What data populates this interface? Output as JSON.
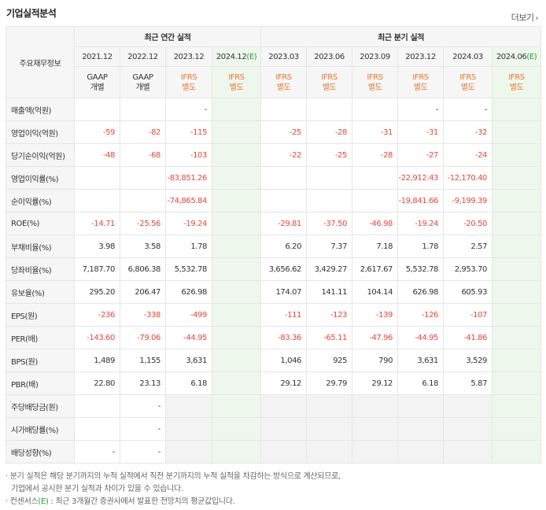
{
  "header": {
    "title": "기업실적분석",
    "more_label": "더보기",
    "more_arrow": "›"
  },
  "table": {
    "row_header": "주요재무정보",
    "groups": [
      "최근 연간 실적",
      "최근 분기 실적"
    ],
    "periods": [
      "2021.12",
      "2022.12",
      "2023.12",
      "2024.12",
      "2023.03",
      "2023.06",
      "2023.09",
      "2023.12",
      "2024.03",
      "2024.06"
    ],
    "estimate_mark": "(E)",
    "accounts": [
      {
        "std": "GAAP",
        "type": "개별"
      },
      {
        "std": "GAAP",
        "type": "개별"
      },
      {
        "std": "IFRS",
        "type": "별도"
      },
      {
        "std": "IFRS",
        "type": "별도"
      },
      {
        "std": "IFRS",
        "type": "별도"
      },
      {
        "std": "IFRS",
        "type": "별도"
      },
      {
        "std": "IFRS",
        "type": "별도"
      },
      {
        "std": "IFRS",
        "type": "별도"
      },
      {
        "std": "IFRS",
        "type": "별도"
      },
      {
        "std": "IFRS",
        "type": "별도"
      }
    ],
    "rows": [
      {
        "label": "매출액(억원)",
        "values": [
          "",
          "",
          "-",
          "",
          "",
          "",
          "",
          "-",
          "-",
          ""
        ]
      },
      {
        "label": "영업이익(억원)",
        "values": [
          "-59",
          "-82",
          "-115",
          "",
          "-25",
          "-28",
          "-31",
          "-31",
          "-32",
          ""
        ]
      },
      {
        "label": "당기순이익(억원)",
        "values": [
          "-48",
          "-68",
          "-103",
          "",
          "-22",
          "-25",
          "-28",
          "-27",
          "-24",
          ""
        ]
      },
      {
        "label": "영업이익률(%)",
        "values": [
          "",
          "",
          "-83,851.26",
          "",
          "",
          "",
          "",
          "-22,912.43",
          "-12,170.40",
          ""
        ]
      },
      {
        "label": "순이익률(%)",
        "values": [
          "",
          "",
          "-74,865.84",
          "",
          "",
          "",
          "",
          "-19,841.66",
          "-9,199.39",
          ""
        ]
      },
      {
        "label": "ROE(%)",
        "values": [
          "-14.71",
          "-25.56",
          "-19.24",
          "",
          "-29.81",
          "-37.50",
          "-46.98",
          "-19.24",
          "-20.50",
          ""
        ]
      },
      {
        "label": "부채비율(%)",
        "values": [
          "3.98",
          "3.58",
          "1.78",
          "",
          "6.20",
          "7.37",
          "7.18",
          "1.78",
          "2.57",
          ""
        ]
      },
      {
        "label": "당좌비율(%)",
        "values": [
          "7,187.70",
          "6,806.38",
          "5,532.78",
          "",
          "3,656.62",
          "3,429.27",
          "2,617.67",
          "5,532.78",
          "2,953.70",
          ""
        ]
      },
      {
        "label": "유보율(%)",
        "values": [
          "295.20",
          "206.47",
          "626.98",
          "",
          "174.07",
          "141.11",
          "104.14",
          "626.98",
          "605.93",
          ""
        ]
      },
      {
        "label": "EPS(원)",
        "values": [
          "-236",
          "-338",
          "-499",
          "",
          "-111",
          "-123",
          "-139",
          "-126",
          "-107",
          ""
        ]
      },
      {
        "label": "PER(배)",
        "values": [
          "-143.60",
          "-79.06",
          "-44.95",
          "",
          "-83.36",
          "-65.11",
          "-47.96",
          "-44.95",
          "-41.86",
          ""
        ]
      },
      {
        "label": "BPS(원)",
        "values": [
          "1,489",
          "1,155",
          "3,631",
          "",
          "1,046",
          "925",
          "790",
          "3,631",
          "3,529",
          ""
        ]
      },
      {
        "label": "PBR(배)",
        "values": [
          "22.80",
          "23.13",
          "6.18",
          "",
          "29.12",
          "29.79",
          "29.12",
          "6.18",
          "5.87",
          ""
        ]
      },
      {
        "label": "주당배당금(원)",
        "values": [
          "",
          "-",
          "",
          "",
          "",
          "",
          "",
          "",
          "",
          ""
        ]
      },
      {
        "label": "시가배당률(%)",
        "values": [
          "",
          "-",
          "",
          "",
          "",
          "",
          "",
          "",
          "",
          ""
        ]
      },
      {
        "label": "배당성향(%)",
        "values": [
          "-",
          "-",
          "",
          "",
          "",
          "",
          "",
          "",
          "",
          ""
        ]
      }
    ]
  },
  "notes": {
    "line1": "분기 실적은 해당 분기까지의 누적 실적에서 직전 분기까지의 누적 실적을 차감하는 방식으로 계산되므로,",
    "line2": "기업에서 공시한 분기 실적과 차이가 있을 수 있습니다.",
    "line3_prefix": "컨센서스",
    "line3_mark": "(E)",
    "line3_rest": ": 최근 3개월간 증권사에서 발표한 전망치의 평균값입니다."
  },
  "colors": {
    "negative": "#e5473d",
    "ifrs": "#e8772e",
    "estimate_bg": "#eef7ec",
    "estimate_text": "#2e9b3b"
  }
}
